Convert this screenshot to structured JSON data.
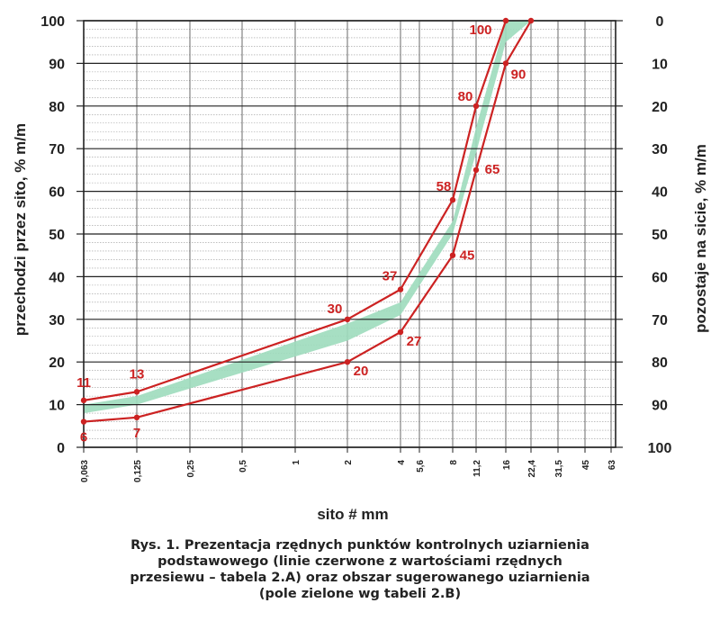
{
  "chart_data": {
    "type": "line",
    "xlabel": "sito # mm",
    "ylabel_left": "przechodzi przez sito, % m/m",
    "ylabel_right": "pozostaje na sicie, % m/m",
    "x_ticks": [
      "0,063",
      "0,125",
      "0,25",
      "0,5",
      "1",
      "2",
      "4",
      "5,6",
      "8",
      "11,2",
      "16",
      "22,4",
      "31,5",
      "45",
      "63"
    ],
    "ylim": [
      0,
      100
    ],
    "y_ticks_left": [
      0,
      10,
      20,
      30,
      40,
      50,
      60,
      70,
      80,
      90,
      100
    ],
    "y_ticks_right": [
      100,
      90,
      80,
      70,
      60,
      50,
      40,
      30,
      20,
      10,
      0
    ],
    "grid": true,
    "series": [
      {
        "color": "#cc2222",
        "points": [
          {
            "x": "0,063",
            "y": 11,
            "label": "11"
          },
          {
            "x": "0,125",
            "y": 13,
            "label": "13"
          },
          {
            "x": "2",
            "y": 30,
            "label": "30"
          },
          {
            "x": "4",
            "y": 37,
            "label": "37"
          },
          {
            "x": "8",
            "y": 58,
            "label": "58"
          },
          {
            "x": "11,2",
            "y": 80,
            "label": "80"
          },
          {
            "x": "16",
            "y": 100,
            "label": "100"
          }
        ]
      },
      {
        "color": "#cc2222",
        "points": [
          {
            "x": "0,063",
            "y": 6,
            "label": "6"
          },
          {
            "x": "0,125",
            "y": 7,
            "label": "7"
          },
          {
            "x": "2",
            "y": 20,
            "label": "20"
          },
          {
            "x": "4",
            "y": 27,
            "label": "27"
          },
          {
            "x": "8",
            "y": 45,
            "label": "45"
          },
          {
            "x": "11,2",
            "y": 65,
            "label": "65"
          },
          {
            "x": "16",
            "y": 90,
            "label": "90"
          },
          {
            "x": "22,4",
            "y": 100,
            "label": ""
          }
        ]
      }
    ],
    "band": {
      "color": "#9ddcbc",
      "upper": [
        [
          "0,063",
          10
        ],
        [
          "0,125",
          12
        ],
        [
          "2",
          29
        ],
        [
          "4",
          34
        ],
        [
          "8",
          53
        ],
        [
          "11,2",
          75
        ],
        [
          "16",
          100
        ]
      ],
      "lower": [
        [
          "0,063",
          8
        ],
        [
          "0,125",
          10
        ],
        [
          "2",
          25
        ],
        [
          "4",
          31
        ],
        [
          "8",
          50
        ],
        [
          "11,2",
          69
        ],
        [
          "16",
          95
        ],
        [
          "22,4",
          100
        ]
      ]
    }
  },
  "caption": {
    "lines": [
      "Rys. 1. Prezentacja rzędnych punktów kontrolnych uziarnienia",
      "podstawowego (linie czerwone z wartościami rzędnych",
      "przesiewu – tabela 2.A) oraz obszar sugerowanego uziarnienia",
      "(pole zielone wg tabeli 2.B)"
    ]
  }
}
